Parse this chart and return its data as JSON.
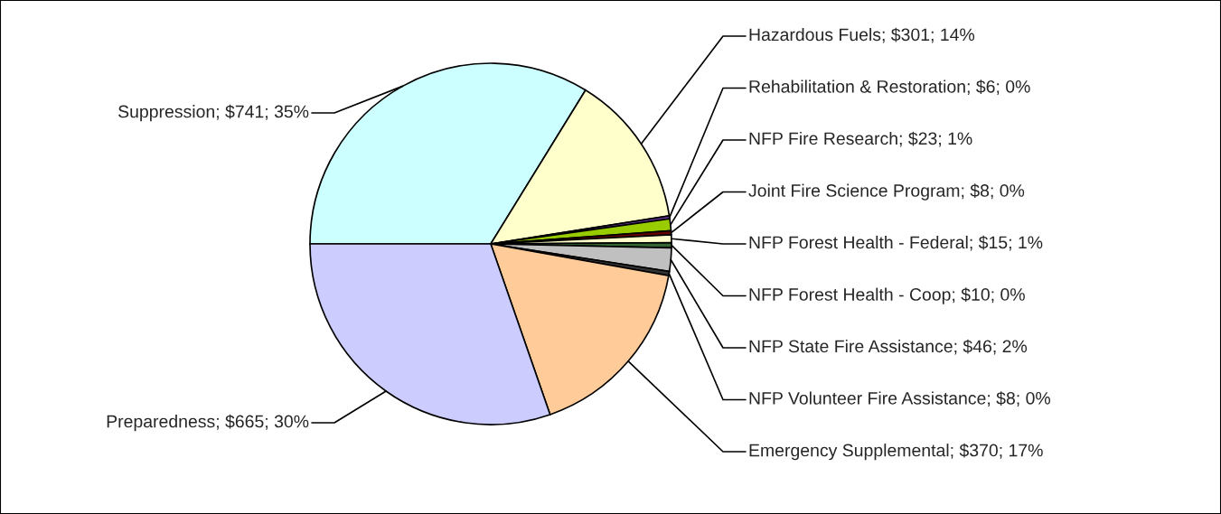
{
  "chart_data": {
    "type": "pie",
    "categories": [
      "Suppression",
      "Hazardous Fuels",
      "Rehabilitation & Restoration",
      "NFP Fire Research",
      "Joint Fire Science Program",
      "NFP Forest Health - Federal",
      "NFP Forest Health - Coop",
      "NFP State Fire Assistance",
      "NFP Volunteer Fire Assistance",
      "Emergency Supplemental",
      "Preparedness"
    ],
    "values": [
      741,
      301,
      6,
      23,
      8,
      15,
      10,
      46,
      8,
      370,
      665
    ],
    "value_labels": [
      "$741; 35%",
      "$301; 14%",
      "$6; 0%",
      "$23; 1%",
      "$8; 0%",
      "$15; 1%",
      "$10; 0%",
      "$46; 2%",
      "$8; 0%",
      "$370; 17%",
      "$665; 30%"
    ],
    "colors": [
      "#ccffff",
      "#ffffcc",
      "#663399",
      "#99cc00",
      "#660000",
      "#ffffcc",
      "#336633",
      "#c0c0c0",
      "#333333",
      "#ffcc99",
      "#ccccff"
    ],
    "legend": false
  }
}
